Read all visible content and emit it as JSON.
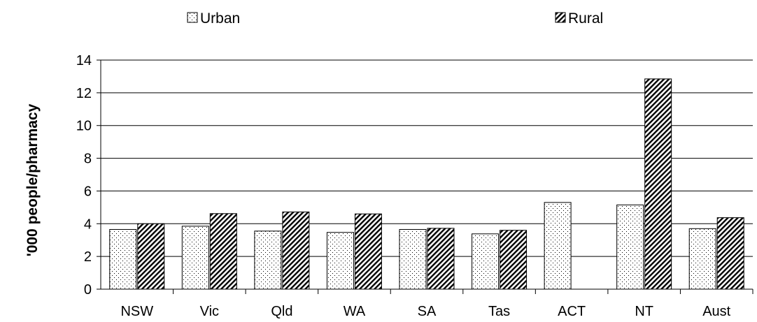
{
  "chart_data": {
    "type": "bar",
    "categories": [
      "NSW",
      "Vic",
      "Qld",
      "WA",
      "SA",
      "Tas",
      "ACT",
      "NT",
      "Aust"
    ],
    "series": [
      {
        "name": "Urban",
        "values": [
          3.65,
          3.85,
          3.55,
          3.47,
          3.65,
          3.38,
          5.3,
          5.15,
          3.7
        ]
      },
      {
        "name": "Rural",
        "values": [
          4.0,
          4.62,
          4.72,
          4.6,
          3.72,
          3.6,
          null,
          12.85,
          4.37
        ]
      }
    ],
    "ylabel": "'000 people/pharmacy",
    "xlabel": "",
    "ylim": [
      0,
      14
    ],
    "yticks": [
      "0",
      "2",
      "4",
      "6",
      "8",
      "10",
      "12",
      "14"
    ],
    "grid": true,
    "legend_position": "top",
    "colors": {
      "axis": "#000000",
      "bar_fill": "#ffffff"
    }
  }
}
